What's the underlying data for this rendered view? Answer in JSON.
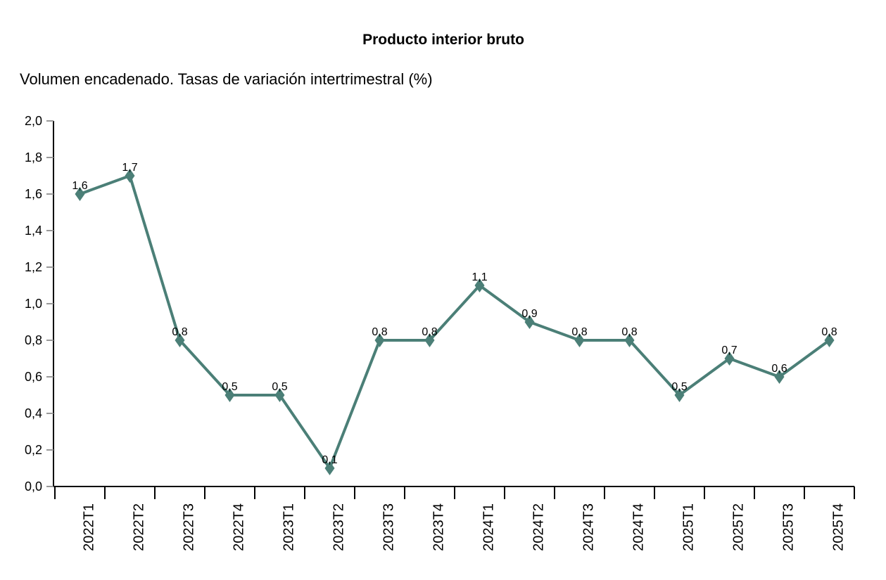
{
  "chart_data": {
    "type": "line",
    "title": "Producto interior bruto",
    "subtitle": "Volumen encadenado. Tasas de variación intertrimestral (%)",
    "xlabel": "",
    "ylabel": "",
    "categories": [
      "2022T1",
      "2022T2",
      "2022T3",
      "2022T4",
      "2023T1",
      "2023T2",
      "2023T3",
      "2023T4",
      "2024T1",
      "2024T2",
      "2024T3",
      "2024T4",
      "2025T1",
      "2025T2",
      "2025T3",
      "2025T4"
    ],
    "values": [
      1.6,
      1.7,
      0.8,
      0.5,
      0.5,
      0.1,
      0.8,
      0.8,
      1.1,
      0.9,
      0.8,
      0.8,
      0.5,
      0.7,
      0.6,
      0.8
    ],
    "data_labels": [
      "1,6",
      "1,7",
      "0,8",
      "0,5",
      "0,5",
      "0,1",
      "0,8",
      "0,8",
      "1,1",
      "0,9",
      "0,8",
      "0,8",
      "0,5",
      "0,7",
      "0,6",
      "0,8"
    ],
    "yticks": [
      "0,0",
      "0,2",
      "0,4",
      "0,6",
      "0,8",
      "1,0",
      "1,2",
      "1,4",
      "1,6",
      "1,8",
      "2,0"
    ],
    "ylim": [
      0,
      2.0
    ],
    "grid": false,
    "marker": "diamond",
    "colors": {
      "line": "#4b7f77",
      "axis": "#000000",
      "tick": "#999999"
    }
  }
}
